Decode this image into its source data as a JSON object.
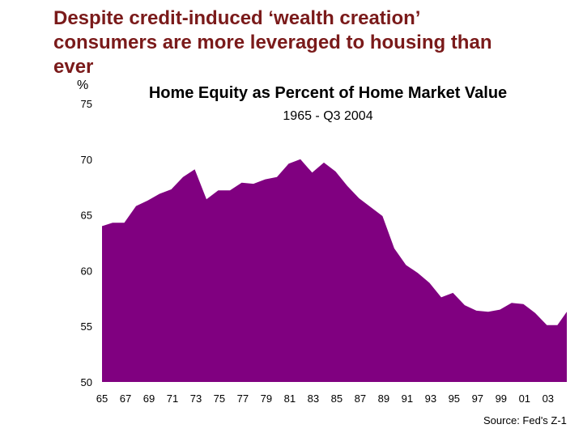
{
  "slide": {
    "title_line1": "Despite credit-induced ‘wealth creation’",
    "title_line2": "consumers are more leveraged to housing than",
    "title_line3": "ever"
  },
  "chart_data": {
    "type": "area",
    "title": "Home Equity as Percent of Home Market Value",
    "subtitle": "1965 - Q3 2004",
    "unit": "%",
    "source": "Source: Fed's Z-1",
    "ylim": [
      50,
      75
    ],
    "yticks": [
      50,
      55,
      60,
      65,
      70,
      75
    ],
    "xlim": [
      1965,
      2004.6
    ],
    "xtick_labels": [
      "65",
      "67",
      "69",
      "71",
      "73",
      "75",
      "77",
      "79",
      "81",
      "83",
      "85",
      "87",
      "89",
      "91",
      "93",
      "95",
      "97",
      "99",
      "01",
      "03"
    ],
    "xtick_years": [
      1965,
      1967,
      1969,
      1971,
      1973,
      1975,
      1977,
      1979,
      1981,
      1983,
      1985,
      1987,
      1989,
      1991,
      1993,
      1995,
      1997,
      1999,
      2001,
      2003
    ],
    "grid": false,
    "fill_color": "#800080",
    "x": [
      1965,
      1965.9,
      1966.9,
      1967.9,
      1968.9,
      1969.9,
      1970.9,
      1971.9,
      1972.9,
      1973.9,
      1974.9,
      1975.9,
      1976.9,
      1977.9,
      1978.9,
      1979.9,
      1980.9,
      1981.9,
      1982.9,
      1983.9,
      1984.9,
      1985.9,
      1986.9,
      1987.9,
      1988.9,
      1989.9,
      1990.9,
      1991.9,
      1992.9,
      1993.9,
      1994.9,
      1995.9,
      1996.9,
      1997.9,
      1998.9,
      1999.9,
      2000.9,
      2001.9,
      2002.9,
      2003.8,
      2004.6
    ],
    "values": [
      64.0,
      64.3,
      64.3,
      65.8,
      66.3,
      66.9,
      67.3,
      68.4,
      69.1,
      66.4,
      67.2,
      67.2,
      67.9,
      67.8,
      68.2,
      68.4,
      69.6,
      70.0,
      68.8,
      69.7,
      68.9,
      67.6,
      66.5,
      65.7,
      64.9,
      62.0,
      60.5,
      59.8,
      58.9,
      57.6,
      58.0,
      56.9,
      56.4,
      56.3,
      56.5,
      57.1,
      57.0,
      56.2,
      55.1,
      55.1,
      56.3
    ]
  }
}
